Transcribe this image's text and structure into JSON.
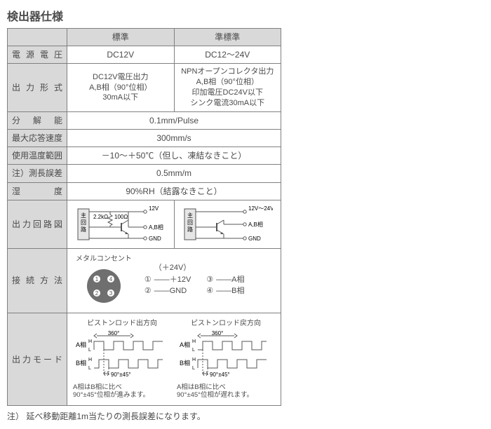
{
  "title": "検出器仕様",
  "headers": {
    "std": "標準",
    "semistd": "準標準"
  },
  "rows": {
    "psu": {
      "label": "電源電圧",
      "std": "DC12V",
      "semi": "DC12～24V"
    },
    "out": {
      "label": "出力形式",
      "std": "DC12V電圧出力\nA,B相（90°位相）\n30mA以下",
      "semi": "NPNオープンコレクタ出力\nA,B相（90°位相）\n印加電圧DC24V以下\nシンク電流30mA以下"
    },
    "res": {
      "label": "分解能",
      "merged": "0.1mm/Pulse"
    },
    "speed": {
      "label": "最大応答速度",
      "merged": "300mm/s"
    },
    "temp": {
      "label": "使用温度範囲",
      "merged": "－10～＋50℃（但し、凍結なきこと）"
    },
    "err": {
      "label": "注）測長誤差",
      "merged": "0.5mm/m"
    },
    "hum": {
      "label": "湿度",
      "merged": "90%RH（結露なきこと）"
    },
    "circuit": {
      "label": "出力回路図"
    },
    "conn": {
      "label": "接続方法"
    },
    "mode": {
      "label": "出力モード"
    }
  },
  "circuit": {
    "std": {
      "top": "12V",
      "r1": "2.2kΩ",
      "r2": "100Ω",
      "ab": "A,B相",
      "gnd": "GND",
      "block": "主回路"
    },
    "semi": {
      "top": "12V～24V",
      "ab": "A,B相",
      "gnd": "GND",
      "block": "主回路"
    }
  },
  "connector": {
    "caption": "メタルコンセント",
    "pins": {
      "p1": "1",
      "p2": "2",
      "p3": "3",
      "p4": "4"
    },
    "legend": {
      "l1a": "①",
      "l1b": "＋12V",
      "l1c": "（＋24V）",
      "l2a": "②",
      "l2b": "GND",
      "l3a": "③",
      "l3b": "A相",
      "l4a": "④",
      "l4b": "B相"
    }
  },
  "timing": {
    "fwd": {
      "caption": "ピストンロッド出方向",
      "note": "A相はB相に比べ\n90°±45°位相が進みます。"
    },
    "rev": {
      "caption": "ピストンロッド戻方向",
      "note": "A相はB相に比べ\n90°±45°位相が遅れます。"
    },
    "labels": {
      "a": "A相",
      "b": "B相",
      "h": "H",
      "l": "L",
      "period": "360°",
      "phase": "90°±45°"
    }
  },
  "footnote": "注） 延べ移動距離1m当たりの測長誤差になります。"
}
